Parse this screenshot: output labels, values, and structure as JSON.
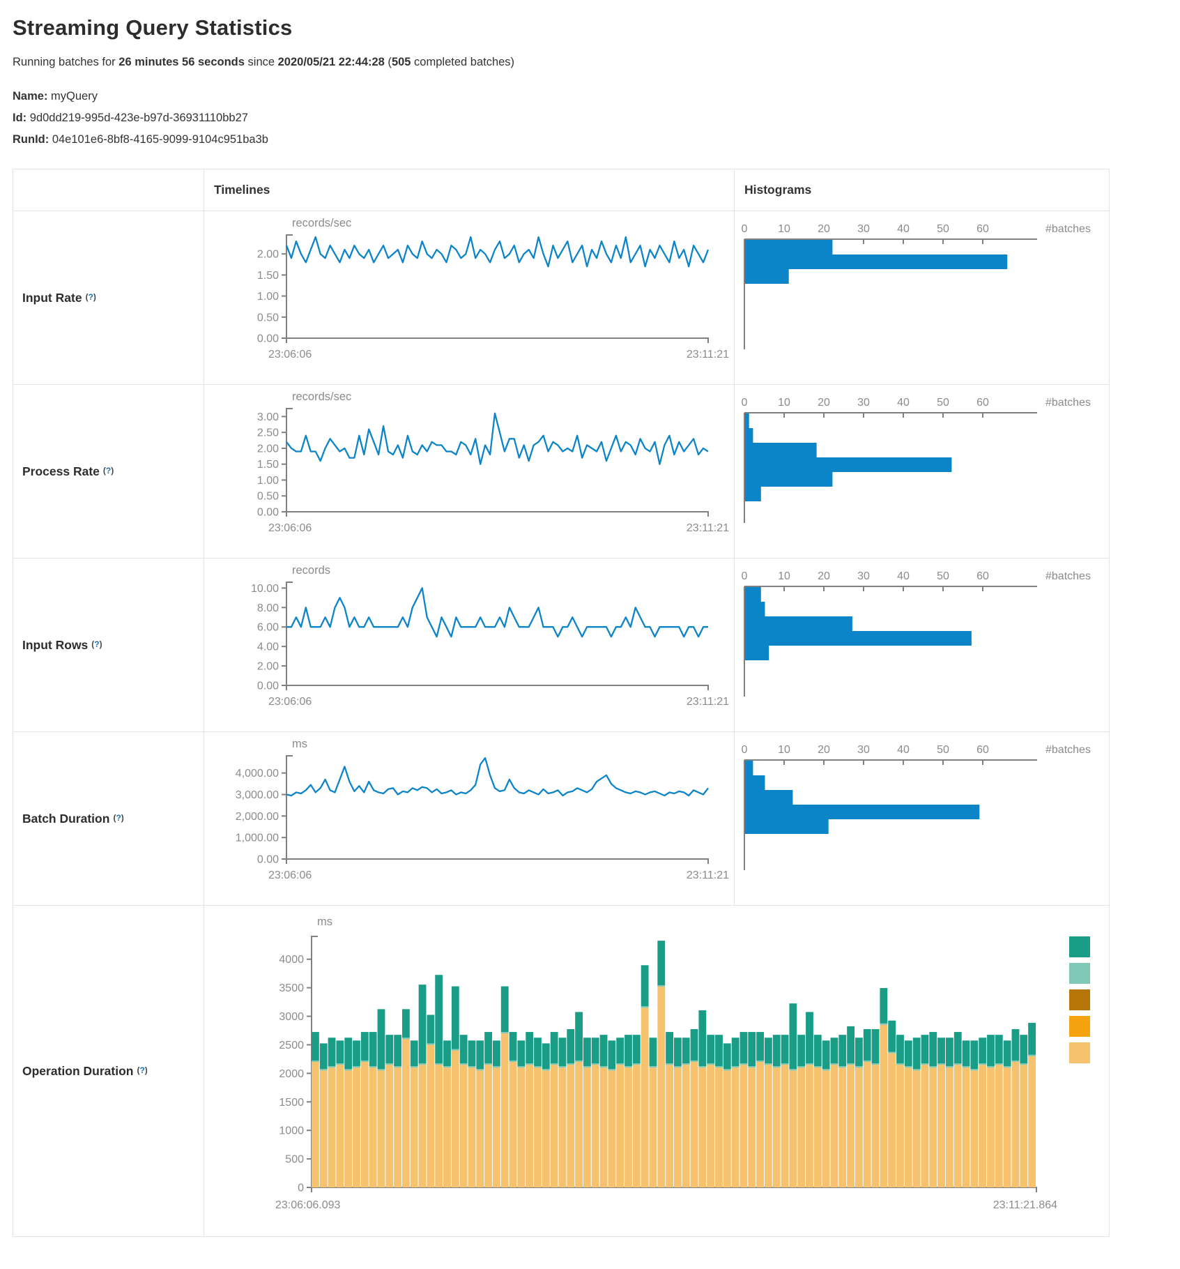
{
  "header": {
    "title": "Streaming Query Statistics",
    "summary_parts": [
      {
        "text": "Running batches for ",
        "bold": false
      },
      {
        "text": "26 minutes 56 seconds",
        "bold": true
      },
      {
        "text": " since ",
        "bold": false
      },
      {
        "text": "2020/05/21 22:44:28",
        "bold": true
      },
      {
        "text": " (",
        "bold": false
      },
      {
        "text": "505",
        "bold": true
      },
      {
        "text": " completed batches)",
        "bold": false
      }
    ]
  },
  "meta": {
    "name_label": "Name:",
    "name": "myQuery",
    "id_label": "Id:",
    "id": "9d0dd219-995d-423e-b97d-36931110bb27",
    "runid_label": "RunId:",
    "runid": "04e101e6-8bf8-4165-9099-9104c951ba3b"
  },
  "ui": {
    "help_open": "(",
    "help_q": "?",
    "help_close": ")",
    "col_timelines": "Timelines",
    "col_histograms": "Histograms"
  },
  "colors": {
    "line_blue": "#0b84c8",
    "hist_blue": "#0b84c8",
    "axis_gray": "#808080",
    "tick_text": "#8b8b8b",
    "teal": "#199d87",
    "light_teal": "#7ec8b5",
    "ochre": "#b87608",
    "orange": "#f5a30f",
    "tan": "#f6c26d"
  },
  "rows": [
    {
      "label": "Input Rate",
      "timeline": {
        "type": "line",
        "unit": "records/sec",
        "x_start": "23:06:06",
        "x_end": "23:11:21",
        "ylim": [
          0,
          2.45
        ],
        "y_ticks": {
          "labels": [
            "2.00",
            "1.50",
            "1.00",
            "0.50",
            "0.00"
          ],
          "values": [
            2,
            1.5,
            1,
            0.5,
            0
          ]
        },
        "values": [
          2.2,
          1.9,
          2.3,
          2.0,
          1.8,
          2.1,
          2.4,
          2.0,
          1.9,
          2.2,
          2.0,
          1.8,
          2.1,
          1.9,
          2.2,
          2.0,
          1.9,
          2.1,
          1.8,
          2.0,
          2.2,
          1.9,
          2.0,
          2.1,
          1.8,
          2.2,
          2.0,
          1.9,
          2.3,
          2.0,
          1.9,
          2.1,
          2.0,
          1.8,
          2.2,
          2.1,
          1.9,
          2.0,
          2.4,
          1.9,
          2.1,
          2.0,
          1.8,
          2.1,
          2.3,
          1.9,
          2.0,
          2.2,
          1.8,
          2.0,
          2.1,
          1.9,
          2.4,
          2.0,
          1.7,
          2.2,
          1.9,
          2.1,
          2.3,
          1.8,
          2.0,
          2.2,
          1.7,
          2.1,
          1.9,
          2.3,
          2.0,
          1.8,
          2.2,
          1.9,
          2.4,
          1.8,
          2.0,
          2.2,
          1.7,
          2.1,
          1.9,
          2.2,
          2.0,
          1.8,
          2.3,
          1.9,
          2.1,
          1.7,
          2.2,
          2.0,
          1.8,
          2.1
        ]
      },
      "histogram": {
        "type": "bar",
        "axis_label": "#batches",
        "x_ticks": [
          0,
          10,
          20,
          30,
          40,
          50,
          60
        ],
        "bin_counts": [
          22,
          66,
          11
        ]
      }
    },
    {
      "label": "Process Rate",
      "timeline": {
        "type": "line",
        "unit": "records/sec",
        "x_start": "23:06:06",
        "x_end": "23:11:21",
        "ylim": [
          0,
          3.25
        ],
        "y_ticks": {
          "labels": [
            "3.00",
            "2.50",
            "2.00",
            "1.50",
            "1.00",
            "0.50",
            "0.00"
          ],
          "values": [
            3,
            2.5,
            2,
            1.5,
            1,
            0.5,
            0
          ]
        },
        "values": [
          2.2,
          2.0,
          1.9,
          1.9,
          2.4,
          1.9,
          1.9,
          1.6,
          2.0,
          2.3,
          2.1,
          1.9,
          2.0,
          1.7,
          1.7,
          2.4,
          1.8,
          2.6,
          2.2,
          1.8,
          2.7,
          1.9,
          1.8,
          2.1,
          1.7,
          2.4,
          1.9,
          1.8,
          2.1,
          1.9,
          2.2,
          2.1,
          2.1,
          1.9,
          1.9,
          1.8,
          2.2,
          2.1,
          1.8,
          2.3,
          1.5,
          2.1,
          1.8,
          3.1,
          2.5,
          1.9,
          2.3,
          2.3,
          1.7,
          2.1,
          1.6,
          2.1,
          2.2,
          2.4,
          1.9,
          2.2,
          2.1,
          1.9,
          2.0,
          1.9,
          2.4,
          1.7,
          2.1,
          2.0,
          1.9,
          2.2,
          1.6,
          2.0,
          2.4,
          1.9,
          2.2,
          2.1,
          1.8,
          2.3,
          2.0,
          1.9,
          2.2,
          1.5,
          2.1,
          2.4,
          1.8,
          2.2,
          1.9,
          2.1,
          2.3,
          1.8,
          2.0,
          1.9
        ]
      },
      "histogram": {
        "type": "bar",
        "axis_label": "#batches",
        "x_ticks": [
          0,
          10,
          20,
          30,
          40,
          50,
          60
        ],
        "bin_counts": [
          1,
          2,
          18,
          52,
          22,
          4
        ]
      }
    },
    {
      "label": "Input Rows",
      "timeline": {
        "type": "line",
        "unit": "records",
        "x_start": "23:06:06",
        "x_end": "23:11:21",
        "ylim": [
          0,
          10.6
        ],
        "y_ticks": {
          "labels": [
            "10.00",
            "8.00",
            "6.00",
            "4.00",
            "2.00",
            "0.00"
          ],
          "values": [
            10,
            8,
            6,
            4,
            2,
            0
          ]
        },
        "values": [
          6,
          6,
          7,
          6,
          8,
          6,
          6,
          6,
          7,
          6,
          8,
          9,
          8,
          6,
          7,
          6,
          6,
          7,
          6,
          6,
          6,
          6,
          6,
          6,
          7,
          6,
          8,
          9,
          10,
          7,
          6,
          5,
          7,
          6,
          5,
          7,
          6,
          6,
          6,
          6,
          7,
          6,
          6,
          6,
          7,
          6,
          8,
          7,
          6,
          6,
          6,
          7,
          8,
          6,
          6,
          6,
          5,
          6,
          6,
          7,
          6,
          5,
          6,
          6,
          6,
          6,
          6,
          5,
          6,
          6,
          7,
          6,
          8,
          7,
          6,
          6,
          5,
          6,
          6,
          6,
          6,
          6,
          5,
          6,
          6,
          5,
          6,
          6
        ]
      },
      "histogram": {
        "type": "bar",
        "axis_label": "#batches",
        "x_ticks": [
          0,
          10,
          20,
          30,
          40,
          50,
          60
        ],
        "bin_counts": [
          4,
          5,
          27,
          57,
          6
        ]
      }
    },
    {
      "label": "Batch Duration",
      "timeline": {
        "type": "line",
        "unit": "ms",
        "x_start": "23:06:06",
        "x_end": "23:11:21",
        "ylim": [
          0,
          4800
        ],
        "y_ticks": {
          "labels": [
            "4,000.00",
            "3,000.00",
            "2,000.00",
            "1,000.00",
            "0.00"
          ],
          "values": [
            4000,
            3000,
            2000,
            1000,
            0
          ]
        },
        "values": [
          3000,
          2950,
          3100,
          3050,
          3200,
          3450,
          3100,
          3300,
          3700,
          3200,
          3100,
          3700,
          4300,
          3600,
          3150,
          3400,
          3100,
          3600,
          3200,
          3100,
          3050,
          3250,
          3300,
          3000,
          3150,
          3100,
          3300,
          3200,
          3350,
          3300,
          3100,
          3250,
          3050,
          3100,
          3200,
          3000,
          3100,
          3050,
          3200,
          3450,
          4400,
          4700,
          3900,
          3300,
          3150,
          3200,
          3700,
          3300,
          3100,
          3050,
          3200,
          3100,
          3000,
          3250,
          3050,
          3100,
          3200,
          2950,
          3100,
          3150,
          3300,
          3200,
          3100,
          3250,
          3600,
          3750,
          3900,
          3500,
          3300,
          3200,
          3100,
          3050,
          3150,
          3100,
          3000,
          3100,
          3150,
          3050,
          2950,
          3100,
          3050,
          3150,
          3100,
          2950,
          3200,
          3100,
          3000,
          3300
        ]
      },
      "histogram": {
        "type": "bar",
        "axis_label": "#batches",
        "x_ticks": [
          0,
          10,
          20,
          30,
          40,
          50,
          60
        ],
        "bin_counts": [
          2,
          5,
          12,
          59,
          21
        ]
      }
    },
    {
      "label": "Operation Duration",
      "timeline": {
        "type": "stacked-bar",
        "unit": "ms",
        "x_start": "23:06:06.093",
        "x_end": "23:11:21.864",
        "ylim": [
          0,
          4400
        ],
        "y_ticks": {
          "labels": [
            "4000",
            "3500",
            "3000",
            "2500",
            "2000",
            "1500",
            "1000",
            "500",
            "0"
          ],
          "values": [
            4000,
            3500,
            3000,
            2500,
            2000,
            1500,
            1000,
            500,
            0
          ]
        },
        "series": [
          {
            "color": "#f6c26d",
            "values": [
              2200,
              2050,
              2100,
              2150,
              2050,
              2100,
              2200,
              2100,
              2050,
              2150,
              2100,
              2600,
              2100,
              2150,
              2500,
              2150,
              2100,
              2400,
              2150,
              2100,
              2050,
              2150,
              2100,
              2700,
              2200,
              2100,
              2150,
              2100,
              2050,
              2150,
              2100,
              2150,
              2200,
              2100,
              2150,
              2100,
              2050,
              2150,
              2100,
              2150,
              3150,
              2100,
              3520,
              2150,
              2100,
              2150,
              2200,
              2100,
              2150,
              2100,
              2050,
              2100,
              2150,
              2100,
              2200,
              2150,
              2100,
              2150,
              2050,
              2100,
              2150,
              2100,
              2050,
              2150,
              2100,
              2150,
              2100,
              2200,
              2150,
              2850,
              2350,
              2150,
              2100,
              2050,
              2150,
              2100,
              2150,
              2100,
              2150,
              2100,
              2050,
              2150,
              2100,
              2150,
              2100,
              2200,
              2150,
              2300
            ]
          },
          {
            "color": "#7ec8b5",
            "constant": 25
          },
          {
            "color": "#199d87",
            "values": [
              500,
              450,
              500,
              400,
              550,
              450,
              500,
              600,
              1050,
              500,
              550,
              500,
              450,
              1380,
              500,
              1550,
              450,
              1100,
              500,
              450,
              500,
              550,
              450,
              800,
              500,
              450,
              550,
              500,
              450,
              550,
              500,
              600,
              850,
              500,
              450,
              550,
              500,
              450,
              550,
              500,
              720,
              500,
              780,
              550,
              500,
              450,
              550,
              980,
              500,
              550,
              450,
              500,
              550,
              600,
              500,
              450,
              550,
              500,
              1150,
              550,
              900,
              550,
              500,
              450,
              550,
              650,
              500,
              550,
              600,
              620,
              550,
              500,
              450,
              550,
              500,
              600,
              450,
              500,
              550,
              450,
              500,
              450,
              550,
              500,
              450,
              550,
              500,
              560
            ]
          }
        ],
        "legend_colors": [
          "#199d87",
          "#7ec8b5",
          "#b87608",
          "#f5a30f",
          "#f6c26d"
        ]
      }
    }
  ]
}
